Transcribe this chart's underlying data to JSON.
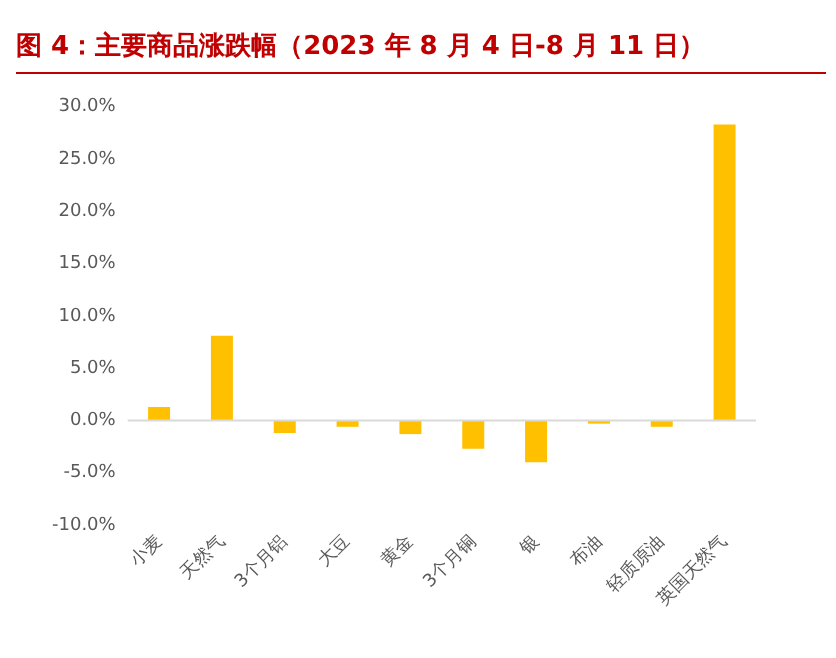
{
  "chart_data": {
    "type": "bar",
    "title": "图 4：主要商品涨跌幅（2023 年 8 月 4 日-8 月 11 日）",
    "categories": [
      "小麦",
      "天然气",
      "3个月铝",
      "大豆",
      "黄金",
      "3个月铜",
      "银",
      "布油",
      "轻质原油",
      "英国天然气"
    ],
    "values": [
      1.3,
      8.1,
      -1.2,
      -0.6,
      -1.3,
      -2.7,
      -4.0,
      -0.3,
      -0.6,
      28.3
    ],
    "color": "#ffc000",
    "ylim": [
      -10,
      30
    ],
    "yticks": [
      {
        "value": -10,
        "label": "-10.0%"
      },
      {
        "value": -5,
        "label": "-5.0%"
      },
      {
        "value": 0,
        "label": "0.0%"
      },
      {
        "value": 5,
        "label": "5.0%"
      },
      {
        "value": 10,
        "label": "10.0%"
      },
      {
        "value": 15,
        "label": "15.0%"
      },
      {
        "value": 20,
        "label": "20.0%"
      },
      {
        "value": 25,
        "label": "25.0%"
      },
      {
        "value": 30,
        "label": "30.0%"
      }
    ],
    "legend": false
  }
}
